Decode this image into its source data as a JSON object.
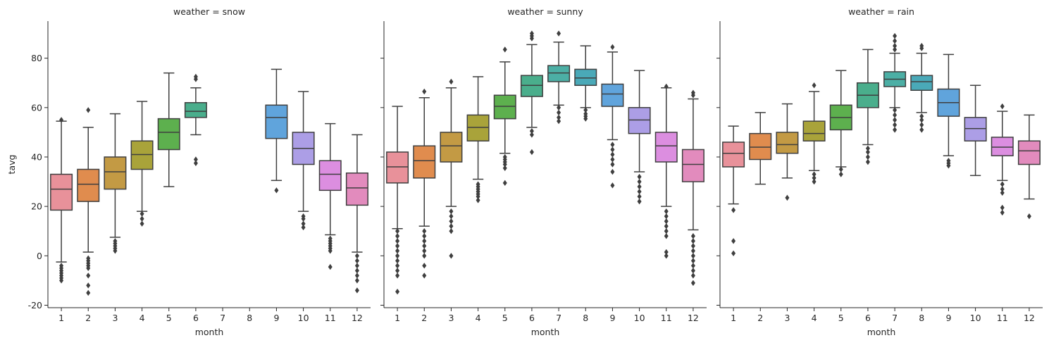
{
  "chart_data": {
    "type": "box",
    "ylabel": "tavg",
    "ylim": [
      -21,
      95
    ],
    "yticks": [
      -20,
      0,
      20,
      40,
      60,
      80
    ],
    "xlabel": "month",
    "categories": [
      "1",
      "2",
      "3",
      "4",
      "5",
      "6",
      "7",
      "8",
      "9",
      "10",
      "11",
      "12"
    ],
    "colors": [
      "#e8919a",
      "#e08c4e",
      "#c39a44",
      "#a9a33a",
      "#5db04e",
      "#4aae8c",
      "#4cafa5",
      "#4aa9b8",
      "#60a4dc",
      "#ac9ee6",
      "#dc8ee0",
      "#e28bbd"
    ],
    "panels": [
      {
        "title": "weather = snow",
        "boxes": [
          {
            "month": 1,
            "q1": 18.5,
            "median": 27,
            "q3": 33,
            "whislo": -2.5,
            "whishi": 54.5,
            "fliers": [
              55,
              -4,
              -5,
              -6,
              -7,
              -8,
              -9,
              -10
            ]
          },
          {
            "month": 2,
            "q1": 22,
            "median": 29,
            "q3": 35,
            "whislo": 1.5,
            "whishi": 52,
            "fliers": [
              59,
              -1,
              -2,
              -3,
              -4,
              -5,
              -8,
              -12,
              -15
            ]
          },
          {
            "month": 3,
            "q1": 27,
            "median": 34,
            "q3": 40,
            "whislo": 7.5,
            "whishi": 57.5,
            "fliers": [
              6,
              5,
              4,
              3,
              2
            ]
          },
          {
            "month": 4,
            "q1": 35,
            "median": 41,
            "q3": 46.5,
            "whislo": 18,
            "whishi": 62.5,
            "fliers": [
              17,
              15,
              13
            ]
          },
          {
            "month": 5,
            "q1": 43,
            "median": 50,
            "q3": 55.5,
            "whislo": 28,
            "whishi": 74
          },
          {
            "month": 6,
            "q1": 56,
            "median": 58.5,
            "q3": 62,
            "whislo": 49,
            "whishi": 68,
            "fliers": [
              72.5,
              71.5,
              39,
              37.5
            ]
          },
          {
            "month": 9,
            "q1": 47.5,
            "median": 56,
            "q3": 61,
            "whislo": 30.5,
            "whishi": 75.5,
            "fliers": [
              26.5
            ]
          },
          {
            "month": 10,
            "q1": 37,
            "median": 43.5,
            "q3": 50,
            "whislo": 18,
            "whishi": 66.5,
            "fliers": [
              16,
              15,
              13,
              11.5
            ]
          },
          {
            "month": 11,
            "q1": 26.5,
            "median": 33,
            "q3": 38.5,
            "whislo": 8.5,
            "whishi": 53.5,
            "fliers": [
              7,
              6,
              5,
              4,
              3,
              2,
              -4.5
            ]
          },
          {
            "month": 12,
            "q1": 20.5,
            "median": 27.5,
            "q3": 33.5,
            "whislo": 1.5,
            "whishi": 49,
            "fliers": [
              0,
              -2,
              -4,
              -6,
              -8,
              -10,
              -14
            ]
          }
        ]
      },
      {
        "title": "weather = sunny",
        "boxes": [
          {
            "month": 1,
            "q1": 29.5,
            "median": 36,
            "q3": 42,
            "whislo": 11,
            "whishi": 60.5,
            "fliers": [
              10,
              8,
              6,
              4,
              2,
              0,
              -2,
              -4,
              -6,
              -8,
              -14.5
            ]
          },
          {
            "month": 2,
            "q1": 31.5,
            "median": 38.5,
            "q3": 44.5,
            "whislo": 12,
            "whishi": 64,
            "fliers": [
              66.5,
              10,
              8,
              6,
              4,
              2,
              0,
              -4,
              -8
            ]
          },
          {
            "month": 3,
            "q1": 38,
            "median": 44.5,
            "q3": 50,
            "whislo": 20,
            "whishi": 68,
            "fliers": [
              70.5,
              18,
              16,
              14,
              12,
              10,
              0
            ]
          },
          {
            "month": 4,
            "q1": 46.5,
            "median": 52,
            "q3": 57,
            "whislo": 31,
            "whishi": 72.5,
            "fliers": [
              29,
              28,
              27,
              26,
              25,
              24,
              22.5
            ]
          },
          {
            "month": 5,
            "q1": 55.5,
            "median": 60.5,
            "q3": 65,
            "whislo": 41.5,
            "whishi": 78.5,
            "fliers": [
              83.5,
              40,
              39,
              38,
              37,
              35.5,
              29.5
            ]
          },
          {
            "month": 6,
            "q1": 64.5,
            "median": 69,
            "q3": 73,
            "whislo": 52,
            "whishi": 85.5,
            "fliers": [
              90,
              89,
              88,
              50.5,
              49,
              42
            ]
          },
          {
            "month": 7,
            "q1": 70.5,
            "median": 74,
            "q3": 77,
            "whislo": 61,
            "whishi": 86.5,
            "fliers": [
              90,
              60,
              58,
              56,
              54.5
            ]
          },
          {
            "month": 8,
            "q1": 69,
            "median": 72,
            "q3": 75.5,
            "whislo": 60,
            "whishi": 85,
            "fliers": [
              59,
              57.5,
              56.5,
              55.5
            ]
          },
          {
            "month": 9,
            "q1": 60.5,
            "median": 65.5,
            "q3": 69.5,
            "whislo": 47,
            "whishi": 82.5,
            "fliers": [
              84.5,
              45,
              43,
              41,
              39,
              37,
              34,
              28.5
            ]
          },
          {
            "month": 10,
            "q1": 49.5,
            "median": 55,
            "q3": 60,
            "whislo": 34,
            "whishi": 75,
            "fliers": [
              32,
              30,
              28,
              26,
              24,
              22
            ]
          },
          {
            "month": 11,
            "q1": 38,
            "median": 44.5,
            "q3": 50,
            "whislo": 20,
            "whishi": 68,
            "fliers": [
              68.5,
              18,
              16,
              14,
              12,
              10,
              8,
              1.5,
              0
            ]
          },
          {
            "month": 12,
            "q1": 30,
            "median": 37,
            "q3": 43,
            "whislo": 10.5,
            "whishi": 63.5,
            "fliers": [
              66,
              65,
              8,
              6,
              4,
              2,
              0,
              -2,
              -4,
              -6,
              -8,
              -11
            ]
          }
        ]
      },
      {
        "title": "weather = rain",
        "boxes": [
          {
            "month": 1,
            "q1": 36,
            "median": 41.5,
            "q3": 46,
            "whislo": 21,
            "whishi": 52.5,
            "fliers": [
              18.5,
              6,
              1
            ]
          },
          {
            "month": 2,
            "q1": 39,
            "median": 44,
            "q3": 49.5,
            "whislo": 29,
            "whishi": 58
          },
          {
            "month": 3,
            "q1": 41.5,
            "median": 45,
            "q3": 50,
            "whislo": 31.5,
            "whishi": 61.5,
            "fliers": [
              23.5
            ]
          },
          {
            "month": 4,
            "q1": 46.5,
            "median": 49.5,
            "q3": 54.5,
            "whislo": 34.5,
            "whishi": 66.5,
            "fliers": [
              69,
              33,
              31.5,
              30
            ]
          },
          {
            "month": 5,
            "q1": 51,
            "median": 56,
            "q3": 61,
            "whislo": 36,
            "whishi": 75,
            "fliers": [
              35,
              33
            ]
          },
          {
            "month": 6,
            "q1": 60,
            "median": 65,
            "q3": 70,
            "whislo": 45,
            "whishi": 83.5,
            "fliers": [
              43.5,
              42,
              40,
              38
            ]
          },
          {
            "month": 7,
            "q1": 68.5,
            "median": 71.5,
            "q3": 74.5,
            "whislo": 60,
            "whishi": 82,
            "fliers": [
              89,
              87,
              85,
              83.5,
              59,
              57,
              55,
              53,
              51
            ]
          },
          {
            "month": 8,
            "q1": 67,
            "median": 70.5,
            "q3": 73,
            "whislo": 58,
            "whishi": 82,
            "fliers": [
              85,
              84,
              56.5,
              55,
              53,
              51
            ]
          },
          {
            "month": 9,
            "q1": 56.5,
            "median": 62,
            "q3": 67.5,
            "whislo": 40.5,
            "whishi": 81.5,
            "fliers": [
              38.5,
              37.5,
              36.5
            ]
          },
          {
            "month": 10,
            "q1": 46.5,
            "median": 51.5,
            "q3": 56,
            "whislo": 32.5,
            "whishi": 69
          },
          {
            "month": 11,
            "q1": 40.5,
            "median": 44,
            "q3": 48,
            "whislo": 30.5,
            "whishi": 58.5,
            "fliers": [
              60.5,
              29,
              27,
              25.5,
              19.5,
              17.5
            ]
          },
          {
            "month": 12,
            "q1": 37,
            "median": 42.5,
            "q3": 46.5,
            "whislo": 23,
            "whishi": 57,
            "fliers": [
              16
            ]
          }
        ]
      }
    ]
  }
}
